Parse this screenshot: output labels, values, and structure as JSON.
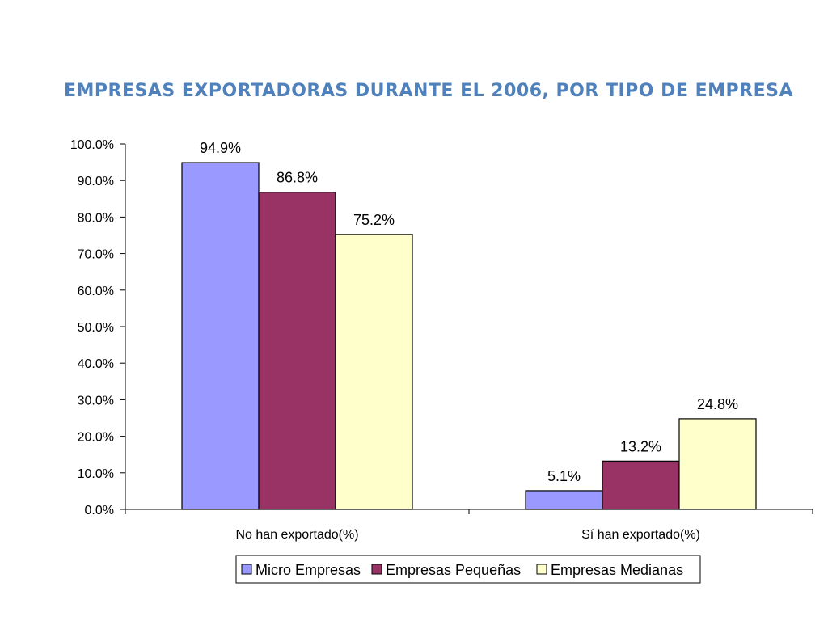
{
  "chart_data": {
    "type": "bar",
    "title": "EMPRESAS EXPORTADORAS DURANTE EL 2006, POR TIPO DE EMPRESA",
    "xlabel": "",
    "ylabel": "",
    "categories": [
      "No han exportado(%)",
      "Sí han exportado(%)"
    ],
    "series": [
      {
        "name": "Micro Empresas",
        "values": [
          94.9,
          5.1
        ],
        "color": "#9999ff"
      },
      {
        "name": "Empresas Pequeñas",
        "values": [
          86.8,
          13.2
        ],
        "color": "#993366"
      },
      {
        "name": "Empresas Medianas",
        "values": [
          75.2,
          24.8
        ],
        "color": "#ffffcc"
      }
    ],
    "data_labels": [
      [
        "94.9%",
        "5.1%"
      ],
      [
        "86.8%",
        "13.2%"
      ],
      [
        "75.2%",
        "24.8%"
      ]
    ],
    "ylim": [
      0,
      100
    ],
    "yticks": [
      "0.0%",
      "10.0%",
      "20.0%",
      "30.0%",
      "40.0%",
      "50.0%",
      "60.0%",
      "70.0%",
      "80.0%",
      "90.0%",
      "100.0%"
    ],
    "grid": false,
    "legend_position": "bottom"
  }
}
